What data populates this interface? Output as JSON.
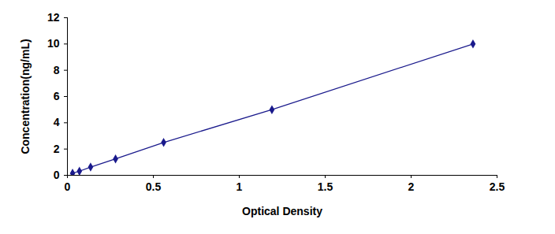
{
  "chart_data": {
    "type": "line",
    "x_label": "Optical Density",
    "y_label": "Concentration(ng/mL)",
    "x": [
      0.03,
      0.07,
      0.135,
      0.28,
      0.56,
      1.19,
      2.36
    ],
    "series": [
      {
        "color": "#1a1a8c",
        "marker": "diamond",
        "values": [
          0.156,
          0.312,
          0.625,
          1.25,
          2.5,
          5,
          10
        ]
      }
    ],
    "xlim": [
      0,
      2.5
    ],
    "xticks": [
      0,
      0.5,
      1,
      1.5,
      2,
      2.5
    ],
    "ylim": [
      0,
      12
    ],
    "yticks": [
      0,
      2,
      4,
      6,
      8,
      10,
      12
    ],
    "grid": false
  }
}
